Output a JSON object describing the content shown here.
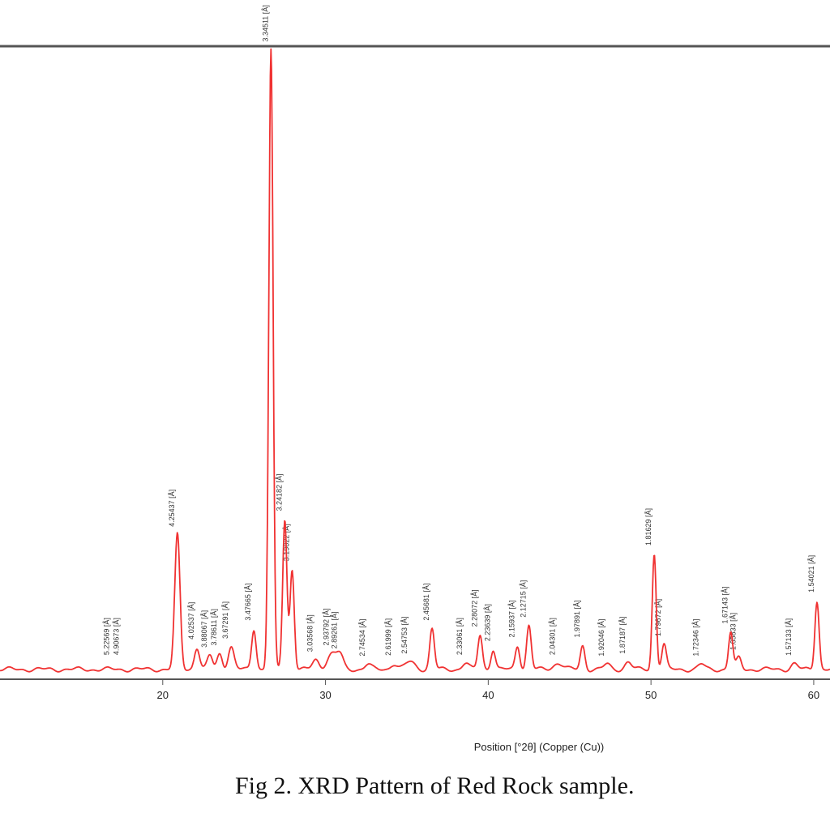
{
  "chart_data": {
    "type": "line",
    "title": "",
    "xlabel": "Position [°2θ] (Copper (Cu))",
    "ylabel": "",
    "xlim": [
      10,
      61
    ],
    "ylim": [
      0,
      100
    ],
    "x_ticks": [
      20,
      30,
      40,
      50,
      60
    ],
    "x_tick_labels": [
      "20",
      "30",
      "40",
      "50",
      "60"
    ],
    "grid": false,
    "series": [
      {
        "color": "#f03232",
        "background": 0.8,
        "peaks": [
          {
            "x": 20.9,
            "height": 21.5,
            "width": 0.16,
            "label": "4.25437 [Å]"
          },
          {
            "x": 22.1,
            "height": 3.5,
            "width": 0.16,
            "label": "4.02537 [Å]"
          },
          {
            "x": 22.9,
            "height": 2.2,
            "width": 0.16,
            "label": "3.88067 [Å]"
          },
          {
            "x": 23.5,
            "height": 2.5,
            "width": 0.16,
            "label": "3.78611 [Å]"
          },
          {
            "x": 24.2,
            "height": 3.6,
            "width": 0.18,
            "label": "3.67291 [Å]"
          },
          {
            "x": 25.6,
            "height": 6.5,
            "width": 0.14,
            "label": "3.47665 [Å]"
          },
          {
            "x": 26.65,
            "height": 99,
            "width": 0.13,
            "label": "3.34511 [Å]"
          },
          {
            "x": 27.5,
            "height": 24,
            "width": 0.13,
            "label": "3.24182 [Å]"
          },
          {
            "x": 27.95,
            "height": 16,
            "width": 0.13,
            "label": "3.19022 [Å]"
          },
          {
            "x": 29.4,
            "height": 1.5,
            "width": 0.2,
            "label": "3.03568 [Å]"
          },
          {
            "x": 30.4,
            "height": 2.5,
            "width": 0.3,
            "label": "2.93792 [Å]"
          },
          {
            "x": 30.9,
            "height": 2,
            "width": 0.2,
            "label": "2.89261 [Å]"
          },
          {
            "x": 32.6,
            "height": 0.8,
            "width": 0.2,
            "label": "2.74534 [Å]"
          },
          {
            "x": 34.2,
            "height": 0.9,
            "width": 0.2,
            "label": "2.61999 [Å]"
          },
          {
            "x": 35.2,
            "height": 1.2,
            "width": 0.3,
            "label": "2.54753 [Å]"
          },
          {
            "x": 36.55,
            "height": 6.5,
            "width": 0.14,
            "label": "2.45681 [Å]"
          },
          {
            "x": 38.6,
            "height": 1,
            "width": 0.2,
            "label": "2.33061 [Å]"
          },
          {
            "x": 39.5,
            "height": 5.5,
            "width": 0.14,
            "label": "2.28072 [Å]"
          },
          {
            "x": 40.3,
            "height": 3.2,
            "width": 0.14,
            "label": "2.23639 [Å]"
          },
          {
            "x": 41.8,
            "height": 3.8,
            "width": 0.14,
            "label": "2.15937 [Å]"
          },
          {
            "x": 42.5,
            "height": 7,
            "width": 0.14,
            "label": "2.12715 [Å]"
          },
          {
            "x": 44.3,
            "height": 1,
            "width": 0.3,
            "label": "2.04301 [Å]"
          },
          {
            "x": 45.8,
            "height": 3.8,
            "width": 0.14,
            "label": "1.97891 [Å]"
          },
          {
            "x": 47.3,
            "height": 0.8,
            "width": 0.2,
            "label": "1.92046 [Å]"
          },
          {
            "x": 48.6,
            "height": 1.2,
            "width": 0.2,
            "label": "1.87187 [Å]"
          },
          {
            "x": 50.2,
            "height": 18.5,
            "width": 0.12,
            "label": "1.81629 [Å]"
          },
          {
            "x": 50.8,
            "height": 4,
            "width": 0.14,
            "label": "1.79672 [Å]"
          },
          {
            "x": 53.1,
            "height": 0.8,
            "width": 0.2,
            "label": "1.72346 [Å]"
          },
          {
            "x": 54.9,
            "height": 6,
            "width": 0.13,
            "label": "1.67143 [Å]"
          },
          {
            "x": 55.4,
            "height": 1.8,
            "width": 0.15,
            "label": "1.65833 [Å]"
          },
          {
            "x": 58.8,
            "height": 0.9,
            "width": 0.2,
            "label": "1.57133 [Å]"
          },
          {
            "x": 60.2,
            "height": 11,
            "width": 0.13,
            "label": "1.54021 [Å]"
          }
        ]
      }
    ],
    "extra_labels": [
      {
        "x": 16.9,
        "label": "5.22569 [Å]"
      },
      {
        "x": 17.5,
        "label": "4.90673 [Å]"
      }
    ]
  },
  "caption": "Fig 2. XRD Pattern of Red Rock sample."
}
